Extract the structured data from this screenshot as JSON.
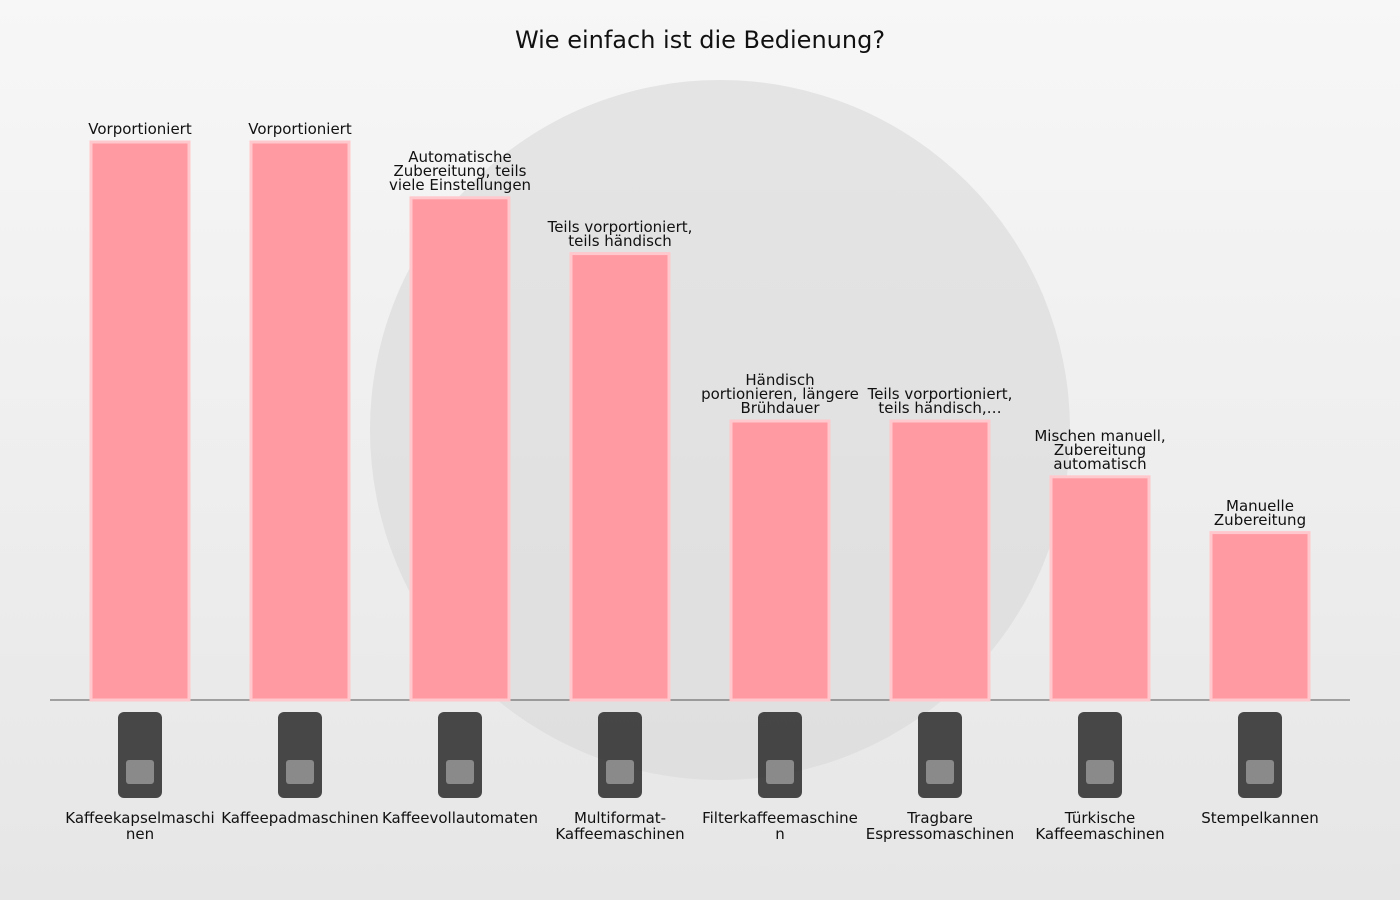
{
  "chart_data": {
    "type": "bar",
    "title": "Wie einfach ist die Bedienung?",
    "categories": [
      "Kaffeekapselmaschinen",
      "Kaffeepadmaschinen",
      "Kaffeevollautomaten",
      "Multiformat-Kaffeemaschinen",
      "Filterkaffeemaschinen",
      "Tragbare Espressomaschinen",
      "Türkische Kaffeemaschinen",
      "Stempelkannen"
    ],
    "values": [
      10,
      10,
      9,
      8,
      5,
      5,
      4,
      3
    ],
    "annotations": [
      "Vorportioniert",
      "Vorportioniert",
      "Automatische Zubereitung, teils viele Einstellungen",
      "Teils vorportioniert, teils händisch",
      "Händisch portionieren, längere Brühdauer",
      "Teils vorportioniert, teils händisch,…",
      "Mischen manuell, Zubereitung automatisch",
      "Manuelle Zubereitung"
    ],
    "color": "#ff9aa2",
    "ylim": [
      0,
      10
    ]
  }
}
